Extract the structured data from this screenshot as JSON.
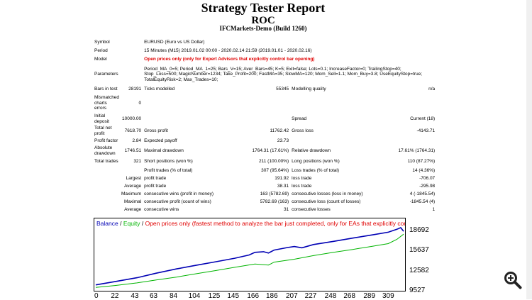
{
  "report": {
    "title": "Strategy Tester Report",
    "subtitle": "ROC",
    "build": "IFCMarkets-Demo (Build 1260)"
  },
  "info": {
    "symbol_label": "Symbol",
    "symbol": "EURUSD (Euro vs US Dollar)",
    "period_label": "Period",
    "period": "15 Minutes (M15) 2019.01.02 00:00 - 2020.02.14 21:59 (2019.01.01 - 2020.02.16)",
    "model_label": "Model",
    "model": "Open prices only (only for Expert Advisors that explicitly control bar opening)",
    "params_label": "Parameters",
    "params": "Period_MA_0=5; Period_MA_1=25; Bars_V=15; Aver_Bars=45; K=5; Exit=false; Lots=0.1; IncreaseFactor=0; TrailingStop=40; Stop_Loss=500; MagicNumber=1234; Take_Profit=200; FastMA=35; SlowMA=120; Mom_Sell=1.1; Mom_Buy=3.8; UseEquityStop=true; TotalEquityRisk=2; Max_Trades=10;"
  },
  "stats": {
    "bars_label": "Bars in test",
    "bars": "28191",
    "ticks_label": "Ticks modelled",
    "ticks": "55345",
    "quality_label": "Modelling quality",
    "quality": "n/a",
    "mismatch_label": "Mismatched charts errors",
    "mismatch": "0",
    "deposit_label": "Initial deposit",
    "deposit": "10000.00",
    "spread_label": "Spread",
    "spread": "Current (18)",
    "netprofit_label": "Total net profit",
    "netprofit": "7618.70",
    "grossprofit_label": "Gross profit",
    "grossprofit": "11762.42",
    "grossloss_label": "Gross loss",
    "grossloss": "-4143.71",
    "pf_label": "Profit factor",
    "pf": "2.84",
    "payoff_label": "Expected payoff",
    "payoff": "23.73",
    "absdd_label": "Absolute drawdown",
    "absdd": "1746.51",
    "maxdd_label": "Maximal drawdown",
    "maxdd": "1764.31 (17.61%)",
    "reldd_label": "Relative drawdown",
    "reldd": "17.61% (1764.31)",
    "trades_label": "Total trades",
    "trades": "321",
    "short_label": "Short positions (won %)",
    "short": "211 (100.00%)",
    "long_label": "Long positions (won %)",
    "long": "110 (87.27%)",
    "ptrades_label": "Profit trades (% of total)",
    "ptrades": "307 (95.64%)",
    "ltrades_label": "Loss trades (% of total)",
    "ltrades": "14 (4.36%)",
    "largest_label": "Largest",
    "lpt_label": "profit trade",
    "lpt": "191.92",
    "llt_label": "loss trade",
    "llt": "-706.07",
    "average_label": "Average",
    "apt_label": "profit trade",
    "apt": "38.31",
    "alt_label": "loss trade",
    "alt": "-295.98",
    "maximum_label": "Maximum",
    "mcw_label": "consecutive wins (profit in money)",
    "mcw": "163 (5782.69)",
    "mcl_label": "consecutive losses (loss in money)",
    "mcl": "4 (-1845.54)",
    "maximal_label": "Maximal",
    "mcp_label": "consecutive profit (count of wins)",
    "mcp": "5782.69 (163)",
    "mcls_label": "consecutive loss (count of losses)",
    "mcls": "-1845.54 (4)",
    "average2_label": "Average",
    "acw_label": "consecutive wins",
    "acw": "31",
    "acl_label": "consecutive losses",
    "acl": "1"
  },
  "chart_data": {
    "type": "line",
    "legend": [
      "Balance",
      "/",
      "Equity",
      "/",
      "Open prices only (fastest method to analyze the bar just completed, only for EAs that explicitly control b"
    ],
    "colors": {
      "balance": "#0000b4",
      "equity": "#00b400",
      "note": "#e00000"
    },
    "y_ticks": [
      "18692",
      "15637",
      "12582",
      "9527"
    ],
    "x_ticks": [
      "0",
      "22",
      "43",
      "63",
      "84",
      "104",
      "125",
      "145",
      "166",
      "186",
      "207",
      "227",
      "248",
      "268",
      "289",
      "309"
    ],
    "ylim": [
      9527,
      18692
    ],
    "xlim": [
      0,
      321
    ],
    "balance": [
      [
        0,
        10000
      ],
      [
        20,
        10500
      ],
      [
        43,
        11100
      ],
      [
        63,
        11800
      ],
      [
        84,
        12450
      ],
      [
        104,
        13000
      ],
      [
        125,
        13550
      ],
      [
        145,
        14100
      ],
      [
        160,
        14600
      ],
      [
        166,
        15000
      ],
      [
        175,
        15100
      ],
      [
        180,
        14900
      ],
      [
        186,
        15350
      ],
      [
        200,
        15750
      ],
      [
        207,
        15900
      ],
      [
        215,
        15700
      ],
      [
        227,
        16200
      ],
      [
        248,
        16700
      ],
      [
        268,
        17200
      ],
      [
        289,
        17700
      ],
      [
        305,
        18100
      ],
      [
        314,
        18550
      ],
      [
        318,
        18800
      ],
      [
        321,
        18250
      ]
    ],
    "equity": [
      [
        0,
        9600
      ],
      [
        20,
        9900
      ],
      [
        43,
        10300
      ],
      [
        63,
        10750
      ],
      [
        84,
        11200
      ],
      [
        104,
        11700
      ],
      [
        125,
        12200
      ],
      [
        145,
        12700
      ],
      [
        166,
        13200
      ],
      [
        180,
        13050
      ],
      [
        186,
        13500
      ],
      [
        207,
        13950
      ],
      [
        227,
        14500
      ],
      [
        248,
        15000
      ],
      [
        268,
        15450
      ],
      [
        289,
        15950
      ],
      [
        305,
        16350
      ],
      [
        314,
        17000
      ],
      [
        321,
        17800
      ]
    ]
  },
  "ui": {
    "zoom_icon": "magnifier-plus-icon"
  }
}
